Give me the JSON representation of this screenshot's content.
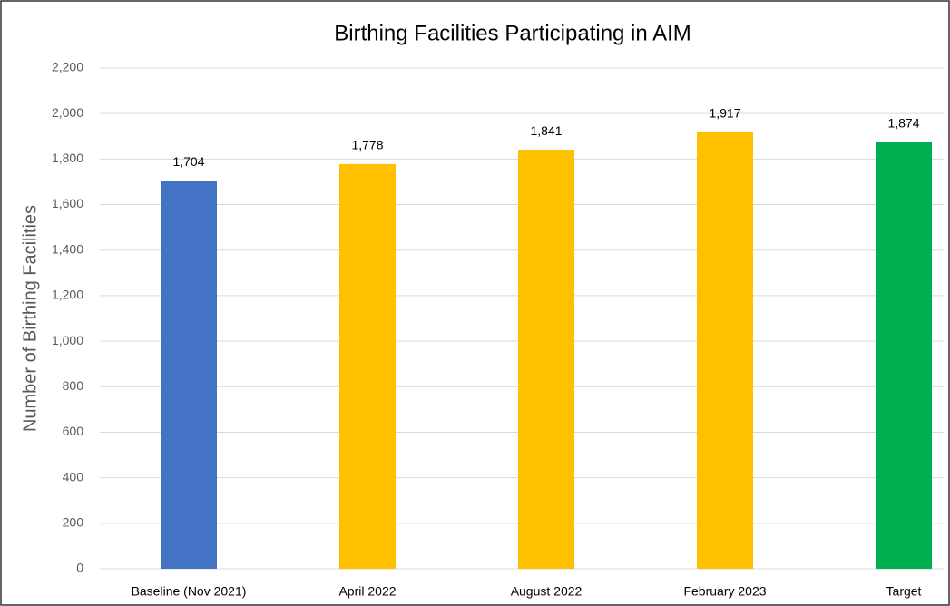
{
  "chart_data": {
    "type": "bar",
    "title": "Birthing Facilities Participating in AIM",
    "y_label": "Number of Birthing Facilities",
    "categories": [
      "Baseline (Nov 2021)",
      "April 2022",
      "August 2022",
      "February 2023",
      "Target"
    ],
    "values": [
      1704,
      1778,
      1841,
      1917,
      1874
    ],
    "value_labels": [
      "1,704",
      "1,778",
      "1,841",
      "1,917",
      "1,874"
    ],
    "colors": [
      "#4472c4",
      "#ffc000",
      "#ffc000",
      "#ffc000",
      "#00b050"
    ],
    "ylim": [
      0,
      2200
    ],
    "yticks": [
      0,
      200,
      400,
      600,
      800,
      {
        "value": 1000,
        "label": "1,000"
      },
      {
        "value": 1200,
        "label": "1,200"
      },
      {
        "value": 1400,
        "label": "1,400"
      },
      {
        "value": 1600,
        "label": "1,600"
      },
      {
        "value": 1800,
        "label": "1,800"
      },
      {
        "value": 2000,
        "label": "2,000"
      },
      {
        "value": 2200,
        "label": "2,200"
      }
    ],
    "grid": true
  }
}
